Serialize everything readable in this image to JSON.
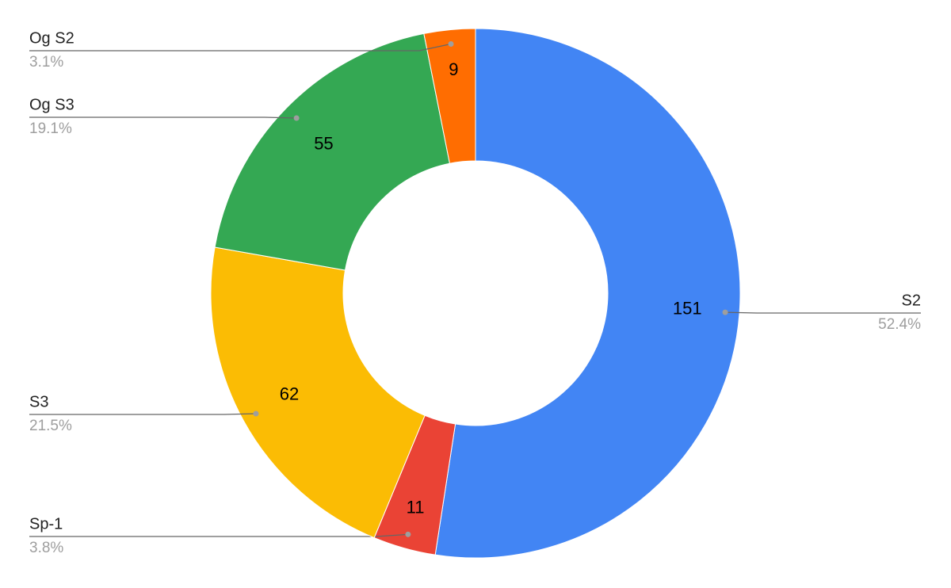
{
  "chart_data": {
    "type": "donut",
    "categories": [
      "S2",
      "Sp-1",
      "S3",
      "Og S3",
      "Og S2"
    ],
    "values": [
      151,
      11,
      62,
      55,
      9
    ],
    "percent_labels": [
      "52.4%",
      "3.8%",
      "21.5%",
      "19.1%",
      "3.1%"
    ],
    "colors": [
      "#4285f4",
      "#ea4335",
      "#fbbc04",
      "#34a853",
      "#ff6d01"
    ]
  }
}
